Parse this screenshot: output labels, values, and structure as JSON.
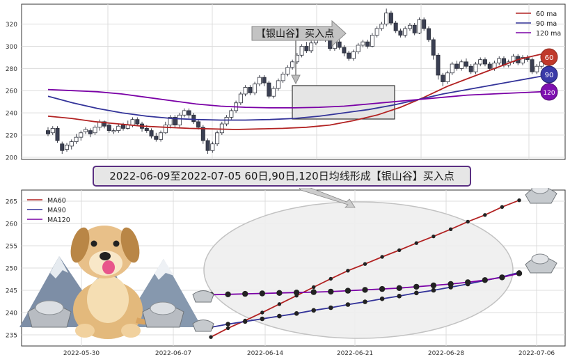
{
  "top_chart": {
    "y_ticks": [
      "320",
      "300",
      "280",
      "260",
      "240",
      "220",
      "200"
    ],
    "legend": [
      {
        "label": "60 ma",
        "color": "#b22222"
      },
      {
        "label": "90 ma",
        "color": "#333399"
      },
      {
        "label": "120 ma",
        "color": "#7a00a6"
      }
    ],
    "annotation": "【银山谷】买入点",
    "end_badges": [
      "60",
      "90",
      "120"
    ]
  },
  "title_banner": "2022-06-09至2022-07-05 60日,90日,120日均线形成【银山谷】买入点",
  "chart_data": [
    {
      "type": "candlestick",
      "title": "",
      "ylim": [
        198,
        338
      ],
      "y_ticks": [
        200,
        220,
        240,
        260,
        280,
        300,
        320
      ],
      "grid": true,
      "legend_position": "top-right",
      "candles": [
        [
          224,
          221,
          227,
          219
        ],
        [
          222,
          226,
          228,
          220
        ],
        [
          226,
          215,
          228,
          213
        ],
        [
          212,
          206,
          214,
          203
        ],
        [
          207,
          211,
          213,
          205
        ],
        [
          210,
          214,
          216,
          207
        ],
        [
          214,
          218,
          221,
          212
        ],
        [
          218,
          222,
          224,
          215
        ],
        [
          223,
          225,
          227,
          221
        ],
        [
          224,
          221,
          226,
          218
        ],
        [
          222,
          227,
          229,
          220
        ],
        [
          227,
          232,
          234,
          224
        ],
        [
          232,
          228,
          233,
          226
        ],
        [
          229,
          224,
          231,
          222
        ],
        [
          223,
          224,
          226,
          221
        ],
        [
          224,
          228,
          230,
          222
        ],
        [
          229,
          226,
          231,
          224
        ],
        [
          226,
          229,
          233,
          225
        ],
        [
          229,
          234,
          236,
          227
        ],
        [
          234,
          230,
          236,
          228
        ],
        [
          230,
          226,
          232,
          223
        ],
        [
          226,
          224,
          229,
          222
        ],
        [
          224,
          219,
          226,
          217
        ],
        [
          219,
          216,
          222,
          214
        ],
        [
          216,
          222,
          224,
          214
        ],
        [
          222,
          229,
          232,
          221
        ],
        [
          229,
          236,
          238,
          226
        ],
        [
          236,
          229,
          238,
          227
        ],
        [
          229,
          238,
          240,
          227
        ],
        [
          238,
          242,
          244,
          236
        ],
        [
          242,
          238,
          244,
          235
        ],
        [
          238,
          232,
          240,
          230
        ],
        [
          232,
          227,
          234,
          225
        ],
        [
          227,
          215,
          229,
          212
        ],
        [
          215,
          206,
          217,
          203
        ],
        [
          206,
          212,
          214,
          204
        ],
        [
          212,
          222,
          224,
          210
        ],
        [
          222,
          230,
          232,
          220
        ],
        [
          230,
          236,
          238,
          228
        ],
        [
          236,
          242,
          244,
          234
        ],
        [
          242,
          249,
          251,
          240
        ],
        [
          249,
          257,
          259,
          247
        ],
        [
          257,
          263,
          265,
          255
        ],
        [
          263,
          258,
          265,
          256
        ],
        [
          258,
          266,
          268,
          256
        ],
        [
          266,
          272,
          274,
          264
        ],
        [
          272,
          267,
          274,
          264
        ],
        [
          267,
          255,
          269,
          253
        ],
        [
          255,
          262,
          264,
          253
        ],
        [
          262,
          269,
          271,
          260
        ],
        [
          269,
          275,
          277,
          267
        ],
        [
          275,
          281,
          283,
          273
        ],
        [
          281,
          286,
          288,
          279
        ],
        [
          286,
          292,
          294,
          284
        ],
        [
          292,
          300,
          302,
          290
        ],
        [
          300,
          296,
          304,
          294
        ],
        [
          296,
          303,
          305,
          294
        ],
        [
          303,
          308,
          310,
          301
        ],
        [
          308,
          312,
          314,
          305
        ],
        [
          312,
          306,
          314,
          304
        ],
        [
          306,
          298,
          308,
          296
        ],
        [
          298,
          304,
          306,
          296
        ],
        [
          304,
          299,
          306,
          297
        ],
        [
          299,
          294,
          301,
          291
        ],
        [
          294,
          289,
          296,
          287
        ],
        [
          289,
          295,
          297,
          287
        ],
        [
          295,
          301,
          303,
          293
        ],
        [
          301,
          304,
          306,
          299
        ],
        [
          304,
          300,
          306,
          298
        ],
        [
          300,
          310,
          312,
          299
        ],
        [
          310,
          316,
          318,
          308
        ],
        [
          316,
          320,
          322,
          314
        ],
        [
          320,
          330,
          334,
          318
        ],
        [
          330,
          321,
          332,
          319
        ],
        [
          321,
          314,
          323,
          312
        ],
        [
          314,
          310,
          316,
          308
        ],
        [
          310,
          316,
          318,
          308
        ],
        [
          316,
          319,
          321,
          314
        ],
        [
          319,
          312,
          321,
          310
        ],
        [
          312,
          324,
          326,
          311
        ],
        [
          324,
          316,
          326,
          314
        ],
        [
          316,
          306,
          318,
          304
        ],
        [
          306,
          292,
          308,
          288
        ],
        [
          292,
          274,
          294,
          270
        ],
        [
          274,
          268,
          276,
          264
        ],
        [
          268,
          276,
          278,
          266
        ],
        [
          276,
          284,
          286,
          274
        ],
        [
          284,
          280,
          287,
          278
        ],
        [
          280,
          286,
          288,
          278
        ],
        [
          286,
          282,
          289,
          280
        ],
        [
          282,
          277,
          284,
          275
        ],
        [
          277,
          284,
          286,
          275
        ],
        [
          284,
          288,
          290,
          282
        ],
        [
          288,
          284,
          290,
          282
        ],
        [
          284,
          280,
          286,
          278
        ],
        [
          280,
          285,
          287,
          278
        ],
        [
          285,
          289,
          291,
          283
        ],
        [
          289,
          283,
          291,
          281
        ],
        [
          283,
          286,
          288,
          281
        ],
        [
          286,
          291,
          293,
          284
        ],
        [
          291,
          285,
          293,
          283
        ],
        [
          285,
          290,
          292,
          283
        ],
        [
          290,
          288,
          292,
          286
        ],
        [
          288,
          277,
          290,
          275
        ],
        [
          277,
          282,
          284,
          275
        ],
        [
          282,
          286,
          288,
          280
        ]
      ],
      "series": [
        {
          "name": "60 ma",
          "values": [
            237,
            235,
            232,
            230,
            228,
            227,
            226,
            225.5,
            225,
            225.5,
            226,
            227,
            229,
            233,
            238,
            245,
            254,
            264,
            272,
            280,
            288,
            293
          ]
        },
        {
          "name": "90 ma",
          "values": [
            255,
            249,
            244,
            240,
            237,
            235,
            234,
            233.5,
            233.5,
            234,
            235,
            237,
            240,
            243,
            247,
            252,
            257,
            261,
            265,
            269,
            273
          ]
        },
        {
          "name": "120 ma",
          "values": [
            261,
            260,
            259,
            257,
            254,
            251,
            248,
            246,
            245,
            244.5,
            244.5,
            245,
            246,
            248,
            250,
            252,
            254,
            256,
            257,
            258,
            259
          ]
        }
      ]
    },
    {
      "type": "line",
      "title": "",
      "x_tick_labels": [
        "2022-05-30",
        "2022-06-07",
        "2022-06-14",
        "2022-06-21",
        "2022-06-28",
        "2022-07-06"
      ],
      "ylim": [
        232.5,
        267.5
      ],
      "y_ticks": [
        235,
        240,
        245,
        250,
        255,
        260,
        265
      ],
      "grid": true,
      "legend_position": "top-left",
      "series": [
        {
          "name": "MA60",
          "color": "#b22222",
          "values": [
            234.5,
            236.5,
            238.2,
            240.0,
            241.9,
            243.8,
            245.7,
            247.6,
            249.4,
            250.9,
            252.5,
            254.0,
            255.6,
            257.1,
            258.7,
            260.4,
            261.9,
            263.7,
            265.2
          ]
        },
        {
          "name": "MA90",
          "color": "#333399",
          "values": [
            236.7,
            237.4,
            238.0,
            238.6,
            239.2,
            239.8,
            240.5,
            241.1,
            241.8,
            242.4,
            243.1,
            243.7,
            244.4,
            245.0,
            245.7,
            246.4,
            247.2,
            248.0,
            249.0
          ]
        },
        {
          "name": "MA120",
          "color": "#7a00a6",
          "values": [
            244.0,
            244.1,
            244.2,
            244.3,
            244.4,
            244.5,
            244.6,
            244.7,
            244.9,
            245.1,
            245.3,
            245.5,
            245.8,
            246.1,
            246.4,
            246.8,
            247.3,
            247.9,
            248.8
          ]
        }
      ]
    }
  ]
}
